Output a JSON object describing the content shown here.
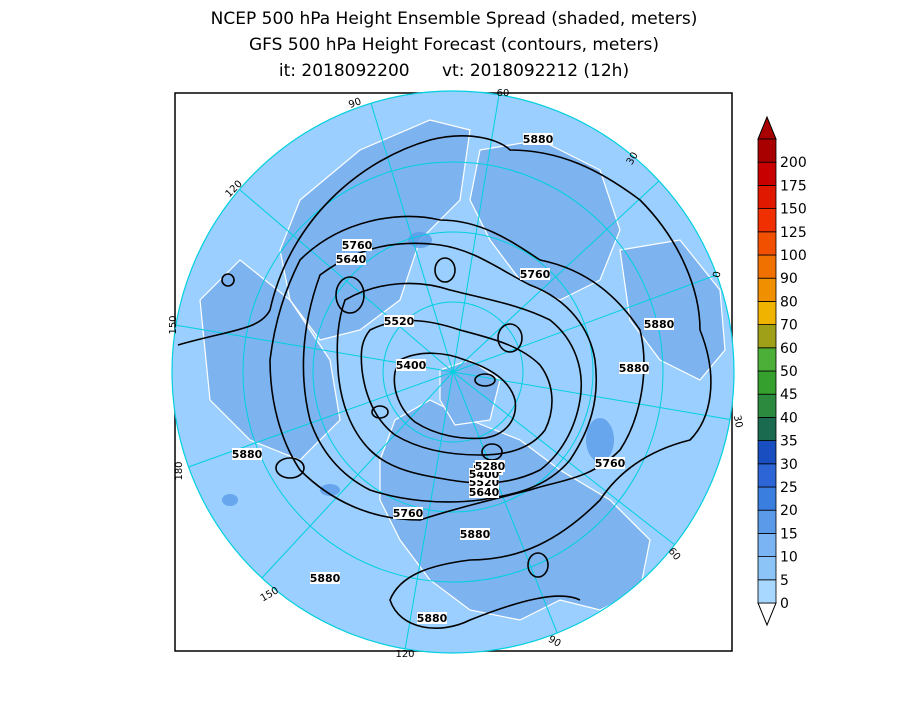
{
  "titles": {
    "line1": "NCEP 500 hPa Height Ensemble Spread (shaded, meters)",
    "line2": "GFS 500 hPa Height Forecast (contours, meters)",
    "line3": "it: 2018092200      vt: 2018092212 (12h)"
  },
  "colorbar": {
    "levels": [
      "0",
      "5",
      "10",
      "15",
      "20",
      "25",
      "30",
      "35",
      "40",
      "45",
      "50",
      "60",
      "70",
      "80",
      "90",
      "100",
      "125",
      "150",
      "175",
      "200"
    ],
    "colors": [
      "#a8d8ff",
      "#8cc4f8",
      "#7ab4f2",
      "#5a9ae8",
      "#3a7ee0",
      "#2d64d6",
      "#184ec0",
      "#1a6a50",
      "#2b8a3e",
      "#36a02e",
      "#4cb038",
      "#a0a018",
      "#f0b400",
      "#f09000",
      "#f07000",
      "#f05000",
      "#f03000",
      "#e01800",
      "#c80000",
      "#a80000"
    ]
  },
  "contour_labels": [
    "5880",
    "5760",
    "5640",
    "5520",
    "5400",
    "5880",
    "5880",
    "5880",
    "5760",
    "5880",
    "5760",
    "5880",
    "5880",
    "5760",
    "5880",
    "5640",
    "5520",
    "5400",
    "5280"
  ],
  "longitude_labels": [
    "60",
    "30",
    "0",
    "30",
    "60",
    "90",
    "120",
    "150",
    "180",
    "150",
    "120",
    "90"
  ],
  "colors": {
    "ocean": "#9bcfff",
    "land": "#7db4f0",
    "graticule": "#00d0e0",
    "coast": "#ffffff",
    "contour": "#000000"
  }
}
